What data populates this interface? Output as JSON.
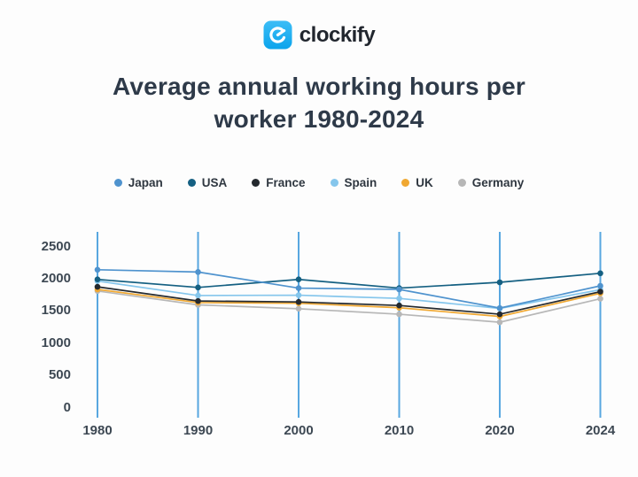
{
  "page": {
    "background": "#fdfdfd"
  },
  "logo": {
    "text": "clockify",
    "icon_color_top": "#3cbdf6",
    "icon_color_bottom": "#0ba4ec"
  },
  "title": {
    "line1": "Average annual working hours per",
    "line2": "worker 1980-2024"
  },
  "chart_data": {
    "type": "line",
    "title": "Average annual working hours per worker 1980-2024",
    "x_labels": [
      "1980",
      "1990",
      "2000",
      "2010",
      "2020",
      "2024"
    ],
    "y_ticks": [
      "0",
      "500",
      "1000",
      "1500",
      "2000",
      "2500"
    ],
    "ylim": [
      0,
      2750
    ],
    "grid": "vertical-only",
    "gridline_color": "#58a7e0",
    "legend_position": "top",
    "series": [
      {
        "name": "Japan",
        "color": "#4f93ce",
        "values": [
          2140,
          2105,
          1855,
          1835,
          1545,
          1890
        ]
      },
      {
        "name": "USA",
        "color": "#156082",
        "values": [
          1990,
          1865,
          1990,
          1855,
          1945,
          2085
        ]
      },
      {
        "name": "France",
        "color": "#24292e",
        "values": [
          1875,
          1655,
          1640,
          1585,
          1450,
          1800
        ]
      },
      {
        "name": "Spain",
        "color": "#85c6ec",
        "values": [
          1965,
          1740,
          1745,
          1695,
          1540,
          1830
        ]
      },
      {
        "name": "UK",
        "color": "#f0a832",
        "values": [
          1835,
          1630,
          1620,
          1550,
          1415,
          1775
        ]
      },
      {
        "name": "Germany",
        "color": "#b7b7b7",
        "values": [
          1810,
          1595,
          1535,
          1450,
          1325,
          1690
        ]
      }
    ]
  }
}
